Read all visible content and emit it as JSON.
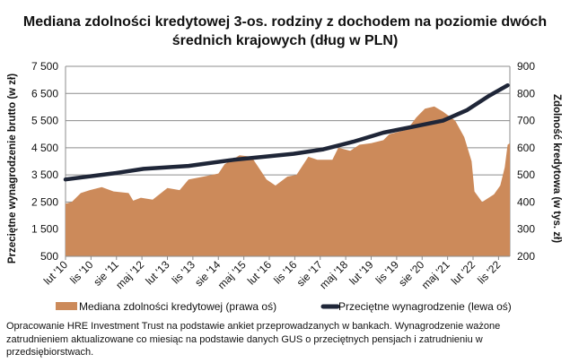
{
  "chart_data": {
    "type": "area+line",
    "title": "Mediana zdolności kredytowej 3-os. rodziny z dochodem na poziomie dwóch średnich krajowych (dług w PLN)",
    "x_unit": "months since lut '10",
    "xtick_labels": [
      "lut '10",
      "lis '10",
      "sie '11",
      "maj '12",
      "lut '13",
      "lis '13",
      "sie '14",
      "maj '15",
      "lut '16",
      "lis '16",
      "sie '17",
      "maj '18",
      "lut '19",
      "lis '19",
      "sie '20",
      "maj '21",
      "lut '22",
      "lis '22"
    ],
    "xlim": [
      0,
      157
    ],
    "left_axis": {
      "label": "Przeciętne wynagrodzenie brutto (w zł)",
      "ticks": [
        "500",
        "1 500",
        "2 500",
        "3 500",
        "4 500",
        "5 500",
        "6 500",
        "7 500"
      ],
      "ylim": [
        500,
        7500
      ]
    },
    "right_axis": {
      "label": "Zdolność kredytowa (w tys. zł)",
      "ticks": [
        "200",
        "300",
        "400",
        "500",
        "600",
        "700",
        "800",
        "900"
      ],
      "ylim": [
        200,
        900
      ]
    },
    "grid": true,
    "legend_position": "bottom",
    "series": [
      {
        "name": "Mediana zdolności kredytowej (prawa oś)",
        "type": "area",
        "axis": "right",
        "color": "#CC8A5A",
        "points": [
          [
            0,
            394
          ],
          [
            2.2,
            400
          ],
          [
            5.4,
            433
          ],
          [
            8.6,
            444
          ],
          [
            12.8,
            455
          ],
          [
            17,
            439
          ],
          [
            22.3,
            433
          ],
          [
            23.9,
            405
          ],
          [
            26.6,
            416
          ],
          [
            30.8,
            409
          ],
          [
            36,
            452
          ],
          [
            40.3,
            444
          ],
          [
            43.5,
            483
          ],
          [
            48.8,
            494
          ],
          [
            54,
            505
          ],
          [
            56.2,
            539
          ],
          [
            61.5,
            572
          ],
          [
            65.7,
            567
          ],
          [
            68.9,
            517
          ],
          [
            71,
            483
          ],
          [
            74.2,
            461
          ],
          [
            78.4,
            494
          ],
          [
            81.6,
            500
          ],
          [
            85.8,
            567
          ],
          [
            89,
            556
          ],
          [
            94.3,
            556
          ],
          [
            96.4,
            600
          ],
          [
            100.6,
            589
          ],
          [
            103.8,
            611
          ],
          [
            108,
            617
          ],
          [
            112.3,
            628
          ],
          [
            114.4,
            650
          ],
          [
            120.7,
            667
          ],
          [
            123.9,
            711
          ],
          [
            127,
            744
          ],
          [
            130.3,
            752
          ],
          [
            133.4,
            733
          ],
          [
            137.7,
            700
          ],
          [
            140.9,
            639
          ],
          [
            143.5,
            550
          ],
          [
            144.5,
            439
          ],
          [
            147.2,
            400
          ],
          [
            151.4,
            428
          ],
          [
            153.6,
            461
          ],
          [
            155.2,
            528
          ],
          [
            156.2,
            611
          ],
          [
            157,
            617
          ]
        ]
      },
      {
        "name": "Przeciętne wynagrodzenie (lewa oś)",
        "type": "line",
        "axis": "left",
        "color": "#1F2638",
        "points": [
          [
            0,
            3333
          ],
          [
            17,
            3556
          ],
          [
            27.6,
            3722
          ],
          [
            43.5,
            3833
          ],
          [
            59.4,
            4056
          ],
          [
            80.5,
            4278
          ],
          [
            91.1,
            4444
          ],
          [
            101.7,
            4722
          ],
          [
            112.3,
            5056
          ],
          [
            122.9,
            5278
          ],
          [
            133.4,
            5500
          ],
          [
            141.9,
            5889
          ],
          [
            149.3,
            6389
          ],
          [
            156.2,
            6800
          ]
        ]
      }
    ],
    "note": "Opracowanie HRE Investment Trust na podstawie ankiet przeprowadzanych w bankach. Wynagrodzenie ważone zatrudnieniem aktualizowane co miesiąc na podstawie danych GUS o przeciętnych pensjach i zatrudnieniu w przedsiębiorstwach."
  }
}
